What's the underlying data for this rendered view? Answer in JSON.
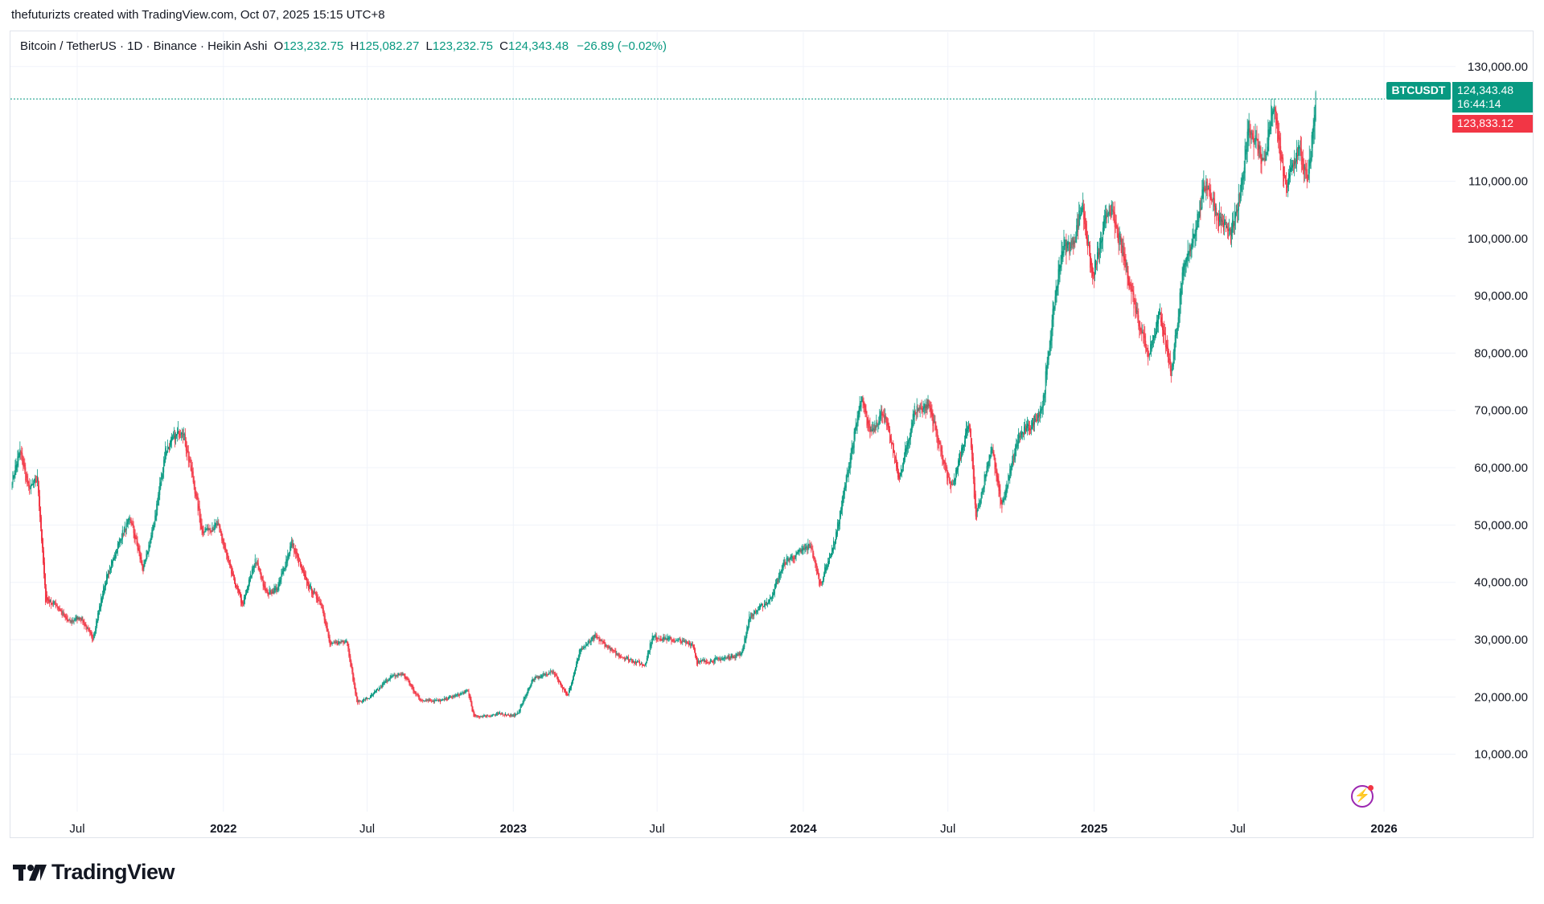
{
  "header": {
    "attribution": "thefuturizts created with TradingView.com, Oct 07, 2025 15:15 UTC+8"
  },
  "legend": {
    "symbol": "Bitcoin / TetherUS · 1D · Binance · Heikin Ashi",
    "o_label": "O",
    "o_value": "123,232.75",
    "h_label": "H",
    "h_value": "125,082.27",
    "l_label": "L",
    "l_value": "123,232.75",
    "c_label": "C",
    "c_value": "124,343.48",
    "change": "−26.89 (−0.02%)"
  },
  "tags": {
    "symbol": "BTCUSDT",
    "last_price": "124,343.48",
    "countdown": "16:44:14",
    "prev_price": "123,833.12"
  },
  "logo": {
    "text": "TradingView"
  },
  "colors": {
    "up": "#089981",
    "down": "#f23645",
    "grid": "#f0f3fa",
    "text": "#131722"
  },
  "chart_data": {
    "type": "candlestick",
    "style": "Heikin Ashi",
    "symbol": "BTCUSDT",
    "interval": "1D",
    "exchange": "Binance",
    "ylim": [
      0,
      136000
    ],
    "y_ticks": [
      "10,000.00",
      "20,000.00",
      "30,000.00",
      "40,000.00",
      "50,000.00",
      "60,000.00",
      "70,000.00",
      "80,000.00",
      "90,000.00",
      "100,000.00",
      "110,000.00",
      "130,000.00"
    ],
    "y_tick_values": [
      10000,
      20000,
      30000,
      40000,
      50000,
      60000,
      70000,
      80000,
      90000,
      100000,
      110000,
      130000
    ],
    "x_ticks": [
      {
        "label": "Jul",
        "date": "2021-07-01",
        "bold": false
      },
      {
        "label": "2022",
        "date": "2022-01-01",
        "bold": true
      },
      {
        "label": "Jul",
        "date": "2022-07-01",
        "bold": false
      },
      {
        "label": "2023",
        "date": "2023-01-01",
        "bold": true
      },
      {
        "label": "Jul",
        "date": "2023-07-01",
        "bold": false
      },
      {
        "label": "2024",
        "date": "2024-01-01",
        "bold": true
      },
      {
        "label": "Jul",
        "date": "2024-07-01",
        "bold": false
      },
      {
        "label": "2025",
        "date": "2025-01-01",
        "bold": true
      },
      {
        "label": "Jul",
        "date": "2025-07-01",
        "bold": false
      },
      {
        "label": "2026",
        "date": "2026-01-01",
        "bold": true
      }
    ],
    "x_range": [
      "2021-04-08",
      "2026-04-01"
    ],
    "price_path": [
      {
        "date": "2021-04-10",
        "price": 58000
      },
      {
        "date": "2021-04-20",
        "price": 63000
      },
      {
        "date": "2021-05-01",
        "price": 56000
      },
      {
        "date": "2021-05-12",
        "price": 58000
      },
      {
        "date": "2021-05-22",
        "price": 37000
      },
      {
        "date": "2021-06-05",
        "price": 36000
      },
      {
        "date": "2021-06-20",
        "price": 33000
      },
      {
        "date": "2021-07-05",
        "price": 34000
      },
      {
        "date": "2021-07-20",
        "price": 30000
      },
      {
        "date": "2021-08-05",
        "price": 40000
      },
      {
        "date": "2021-08-25",
        "price": 48000
      },
      {
        "date": "2021-09-06",
        "price": 51000
      },
      {
        "date": "2021-09-22",
        "price": 42000
      },
      {
        "date": "2021-10-05",
        "price": 50000
      },
      {
        "date": "2021-10-20",
        "price": 63000
      },
      {
        "date": "2021-11-10",
        "price": 67000
      },
      {
        "date": "2021-11-25",
        "price": 57000
      },
      {
        "date": "2021-12-05",
        "price": 49000
      },
      {
        "date": "2021-12-25",
        "price": 50000
      },
      {
        "date": "2022-01-10",
        "price": 42000
      },
      {
        "date": "2022-01-25",
        "price": 36000
      },
      {
        "date": "2022-02-10",
        "price": 44000
      },
      {
        "date": "2022-02-25",
        "price": 38000
      },
      {
        "date": "2022-03-10",
        "price": 39000
      },
      {
        "date": "2022-03-28",
        "price": 47000
      },
      {
        "date": "2022-04-15",
        "price": 40000
      },
      {
        "date": "2022-05-05",
        "price": 36000
      },
      {
        "date": "2022-05-15",
        "price": 29000
      },
      {
        "date": "2022-06-05",
        "price": 30000
      },
      {
        "date": "2022-06-18",
        "price": 19000
      },
      {
        "date": "2022-07-05",
        "price": 20000
      },
      {
        "date": "2022-07-30",
        "price": 23500
      },
      {
        "date": "2022-08-15",
        "price": 24000
      },
      {
        "date": "2022-09-05",
        "price": 19500
      },
      {
        "date": "2022-10-01",
        "price": 19300
      },
      {
        "date": "2022-11-05",
        "price": 21000
      },
      {
        "date": "2022-11-12",
        "price": 16500
      },
      {
        "date": "2022-12-15",
        "price": 17000
      },
      {
        "date": "2023-01-05",
        "price": 16800
      },
      {
        "date": "2023-01-25",
        "price": 23000
      },
      {
        "date": "2023-02-20",
        "price": 24500
      },
      {
        "date": "2023-03-10",
        "price": 20000
      },
      {
        "date": "2023-03-25",
        "price": 28000
      },
      {
        "date": "2023-04-14",
        "price": 30500
      },
      {
        "date": "2023-05-10",
        "price": 27500
      },
      {
        "date": "2023-06-15",
        "price": 25500
      },
      {
        "date": "2023-06-25",
        "price": 30500
      },
      {
        "date": "2023-07-20",
        "price": 30000
      },
      {
        "date": "2023-08-15",
        "price": 29200
      },
      {
        "date": "2023-08-20",
        "price": 26000
      },
      {
        "date": "2023-09-15",
        "price": 26500
      },
      {
        "date": "2023-10-15",
        "price": 27500
      },
      {
        "date": "2023-10-25",
        "price": 34000
      },
      {
        "date": "2023-11-20",
        "price": 37000
      },
      {
        "date": "2023-12-08",
        "price": 43500
      },
      {
        "date": "2024-01-10",
        "price": 46500
      },
      {
        "date": "2024-01-22",
        "price": 39500
      },
      {
        "date": "2024-02-10",
        "price": 47500
      },
      {
        "date": "2024-02-28",
        "price": 61000
      },
      {
        "date": "2024-03-14",
        "price": 72000
      },
      {
        "date": "2024-03-25",
        "price": 66000
      },
      {
        "date": "2024-04-10",
        "price": 70000
      },
      {
        "date": "2024-05-01",
        "price": 58000
      },
      {
        "date": "2024-05-20",
        "price": 70000
      },
      {
        "date": "2024-06-07",
        "price": 71000
      },
      {
        "date": "2024-07-05",
        "price": 56000
      },
      {
        "date": "2024-07-28",
        "price": 68000
      },
      {
        "date": "2024-08-05",
        "price": 51000
      },
      {
        "date": "2024-08-25",
        "price": 64000
      },
      {
        "date": "2024-09-06",
        "price": 53000
      },
      {
        "date": "2024-09-28",
        "price": 65500
      },
      {
        "date": "2024-10-15",
        "price": 67500
      },
      {
        "date": "2024-10-28",
        "price": 71000
      },
      {
        "date": "2024-11-13",
        "price": 90000
      },
      {
        "date": "2024-11-22",
        "price": 98500
      },
      {
        "date": "2024-12-05",
        "price": 99000
      },
      {
        "date": "2024-12-17",
        "price": 106000
      },
      {
        "date": "2024-12-30",
        "price": 93000
      },
      {
        "date": "2025-01-20",
        "price": 106000
      },
      {
        "date": "2025-02-05",
        "price": 98000
      },
      {
        "date": "2025-02-25",
        "price": 86000
      },
      {
        "date": "2025-03-10",
        "price": 80000
      },
      {
        "date": "2025-03-25",
        "price": 87000
      },
      {
        "date": "2025-04-08",
        "price": 76500
      },
      {
        "date": "2025-04-22",
        "price": 93000
      },
      {
        "date": "2025-05-10",
        "price": 103000
      },
      {
        "date": "2025-05-22",
        "price": 110000
      },
      {
        "date": "2025-06-05",
        "price": 104000
      },
      {
        "date": "2025-06-22",
        "price": 100500
      },
      {
        "date": "2025-07-05",
        "price": 108000
      },
      {
        "date": "2025-07-14",
        "price": 120000
      },
      {
        "date": "2025-08-03",
        "price": 113000
      },
      {
        "date": "2025-08-14",
        "price": 123500
      },
      {
        "date": "2025-08-30",
        "price": 108500
      },
      {
        "date": "2025-09-15",
        "price": 116000
      },
      {
        "date": "2025-09-27",
        "price": 109500
      },
      {
        "date": "2025-10-07",
        "price": 124343
      }
    ]
  }
}
